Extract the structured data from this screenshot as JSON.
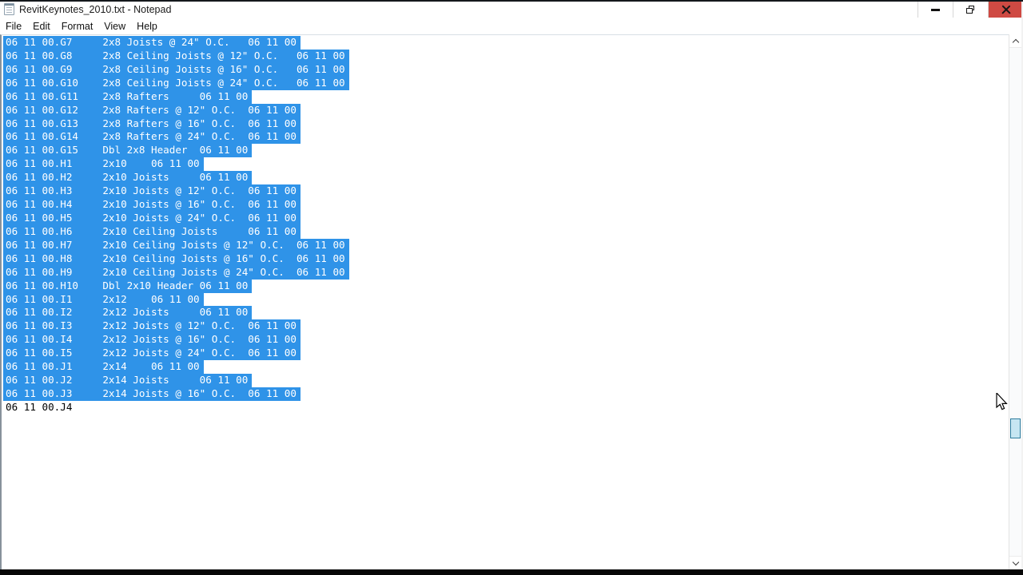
{
  "window": {
    "title": "RevitKeynotes_2010.txt - Notepad"
  },
  "menu_bar": {
    "items": [
      {
        "label": "File"
      },
      {
        "label": "Edit"
      },
      {
        "label": "Format"
      },
      {
        "label": "View"
      },
      {
        "label": "Help"
      }
    ]
  },
  "colors": {
    "selection_highlight": "#2f93e8",
    "selected_text": "#ffffff",
    "normal_text": "#000000",
    "close_button_red": "#cf4a43"
  },
  "editor": {
    "lines": [
      {
        "code": "06 11 00.G7",
        "description": "2x8 Joists @ 24\" O.C.",
        "section": "06 11 00",
        "selected": true
      },
      {
        "code": "06 11 00.G8",
        "description": "2x8 Ceiling Joists @ 12\" O.C.",
        "section": "06 11 00",
        "selected": true
      },
      {
        "code": "06 11 00.G9",
        "description": "2x8 Ceiling Joists @ 16\" O.C.",
        "section": "06 11 00",
        "selected": true
      },
      {
        "code": "06 11 00.G10",
        "description": "2x8 Ceiling Joists @ 24\" O.C.",
        "section": "06 11 00",
        "selected": true
      },
      {
        "code": "06 11 00.G11",
        "description": "2x8 Rafters",
        "section": "06 11 00",
        "selected": true
      },
      {
        "code": "06 11 00.G12",
        "description": "2x8 Rafters @ 12\" O.C.",
        "section": "06 11 00",
        "selected": true
      },
      {
        "code": "06 11 00.G13",
        "description": "2x8 Rafters @ 16\" O.C.",
        "section": "06 11 00",
        "selected": true
      },
      {
        "code": "06 11 00.G14",
        "description": "2x8 Rafters @ 24\" O.C.",
        "section": "06 11 00",
        "selected": true
      },
      {
        "code": "06 11 00.G15",
        "description": "Dbl 2x8 Header",
        "section": "06 11 00",
        "selected": true
      },
      {
        "code": "06 11 00.H1",
        "description": "2x10",
        "section": "06 11 00",
        "selected": true
      },
      {
        "code": "06 11 00.H2",
        "description": "2x10 Joists",
        "section": "06 11 00",
        "selected": true
      },
      {
        "code": "06 11 00.H3",
        "description": "2x10 Joists @ 12\" O.C.",
        "section": "06 11 00",
        "selected": true
      },
      {
        "code": "06 11 00.H4",
        "description": "2x10 Joists @ 16\" O.C.",
        "section": "06 11 00",
        "selected": true
      },
      {
        "code": "06 11 00.H5",
        "description": "2x10 Joists @ 24\" O.C.",
        "section": "06 11 00",
        "selected": true
      },
      {
        "code": "06 11 00.H6",
        "description": "2x10 Ceiling Joists",
        "section": "06 11 00",
        "selected": true
      },
      {
        "code": "06 11 00.H7",
        "description": "2x10 Ceiling Joists @ 12\" O.C.",
        "section": "06 11 00",
        "selected": true
      },
      {
        "code": "06 11 00.H8",
        "description": "2x10 Ceiling Joists @ 16\" O.C.",
        "section": "06 11 00",
        "selected": true
      },
      {
        "code": "06 11 00.H9",
        "description": "2x10 Ceiling Joists @ 24\" O.C.",
        "section": "06 11 00",
        "selected": true
      },
      {
        "code": "06 11 00.H10",
        "description": "Dbl 2x10 Header",
        "section": "06 11 00",
        "selected": true
      },
      {
        "code": "06 11 00.I1",
        "description": "2x12",
        "section": "06 11 00",
        "selected": true
      },
      {
        "code": "06 11 00.I2",
        "description": "2x12 Joists",
        "section": "06 11 00",
        "selected": true
      },
      {
        "code": "06 11 00.I3",
        "description": "2x12 Joists @ 12\" O.C.",
        "section": "06 11 00",
        "selected": true
      },
      {
        "code": "06 11 00.I4",
        "description": "2x12 Joists @ 16\" O.C.",
        "section": "06 11 00",
        "selected": true
      },
      {
        "code": "06 11 00.I5",
        "description": "2x12 Joists @ 24\" O.C.",
        "section": "06 11 00",
        "selected": true
      },
      {
        "code": "06 11 00.J1",
        "description": "2x14",
        "section": "06 11 00",
        "selected": true
      },
      {
        "code": "06 11 00.J2",
        "description": "2x14 Joists",
        "section": "06 11 00",
        "selected": true
      },
      {
        "code": "06 11 00.J3",
        "description": "2x14 Joists @ 16\" O.C.",
        "section": "06 11 00",
        "selected": true
      },
      {
        "code": "06 11 00.J4",
        "description": "",
        "section": "",
        "selected": false
      }
    ]
  }
}
